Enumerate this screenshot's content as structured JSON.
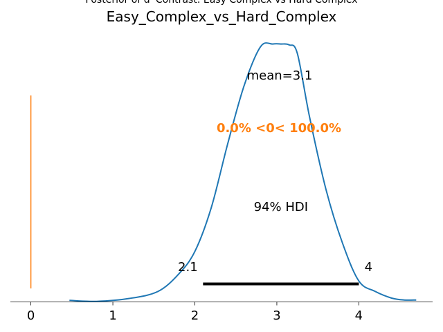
{
  "chart_data": {
    "type": "area",
    "suptitle": "Posterior of d' Contrast: Easy Complex vs Hard Complex",
    "title": "Easy_Complex_vs_Hard_Complex",
    "xlabel": "",
    "ylabel": "",
    "xlim": [
      -0.25,
      4.9
    ],
    "ylim": [
      0,
      1.09
    ],
    "xticks": [
      0,
      1,
      2,
      3,
      4
    ],
    "x": [
      0.47,
      0.8,
      1.2,
      1.55,
      1.8,
      2.0,
      2.2,
      2.4,
      2.6,
      2.8,
      2.95,
      3.05,
      3.15,
      3.25,
      3.4,
      3.6,
      3.8,
      4.0,
      4.2,
      4.4,
      4.55,
      4.7
    ],
    "density": [
      0.0059,
      0.0022,
      0.0133,
      0.0406,
      0.107,
      0.1956,
      0.3653,
      0.6125,
      0.8376,
      0.989,
      1.0,
      1.0,
      0.9963,
      0.9631,
      0.7159,
      0.4355,
      0.2288,
      0.0812,
      0.0406,
      0.0148,
      0.0074,
      0.0074
    ],
    "color_density": "#1f77b4",
    "reference": {
      "value": 0,
      "color": "#ff7f0e",
      "text": "0.0% <0< 100.0%"
    },
    "mean_text": "mean=3.1",
    "hdi": {
      "low": 2.1,
      "high": 4.0,
      "low_label": "2.1",
      "high_label": "4",
      "text": "94% HDI"
    }
  }
}
